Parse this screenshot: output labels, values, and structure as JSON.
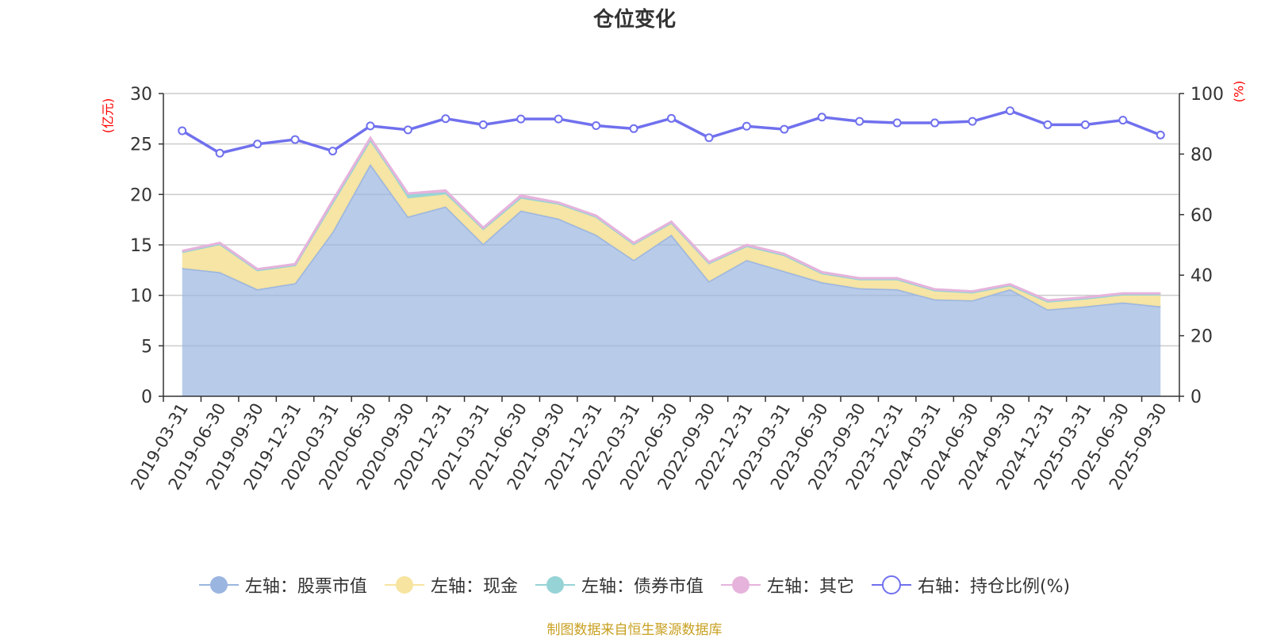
{
  "chart_data": {
    "type": "area",
    "title": "仓位变化",
    "left_axis_unit": "(亿元)",
    "right_axis_unit": "(%)",
    "left_ylim": [
      0,
      30
    ],
    "left_ticks": [
      0,
      5,
      10,
      15,
      20,
      25,
      30
    ],
    "right_ylim": [
      0,
      100
    ],
    "right_ticks": [
      0,
      20,
      40,
      60,
      80,
      100
    ],
    "categories": [
      "2019-03-31",
      "2019-06-30",
      "2019-09-30",
      "2019-12-31",
      "2020-03-31",
      "2020-06-30",
      "2020-09-30",
      "2020-12-31",
      "2021-03-31",
      "2021-06-30",
      "2021-09-30",
      "2021-12-31",
      "2022-03-31",
      "2022-06-30",
      "2022-09-30",
      "2022-12-31",
      "2023-03-31",
      "2023-06-30",
      "2023-09-30",
      "2023-12-31",
      "2024-03-31",
      "2024-06-30",
      "2024-09-30",
      "2024-12-31",
      "2025-03-31",
      "2025-06-30",
      "2025-09-30"
    ],
    "series": [
      {
        "name": "左轴：股票市值",
        "axis": "left",
        "kind": "stacked-area",
        "color": "#9ab5e0",
        "values": [
          12.7,
          12.3,
          10.6,
          11.2,
          16.3,
          23.0,
          17.8,
          18.8,
          15.1,
          18.4,
          17.6,
          16.0,
          13.5,
          16.0,
          11.4,
          13.5,
          12.4,
          11.3,
          10.7,
          10.6,
          9.6,
          9.5,
          10.6,
          8.6,
          8.9,
          9.3,
          8.9
        ]
      },
      {
        "name": "左轴：现金",
        "axis": "left",
        "kind": "stacked-area",
        "color": "#f7e4a0",
        "values": [
          1.6,
          2.8,
          1.9,
          1.8,
          2.9,
          2.4,
          1.8,
          1.2,
          1.5,
          1.3,
          1.5,
          1.8,
          1.6,
          1.2,
          1.8,
          1.4,
          1.6,
          0.9,
          0.9,
          1.0,
          0.9,
          0.8,
          0.4,
          0.8,
          0.8,
          0.8,
          1.2
        ]
      },
      {
        "name": "左轴：债券市值",
        "axis": "left",
        "kind": "stacked-area",
        "color": "#96d3d6",
        "values": [
          0,
          0,
          0,
          0,
          0,
          0,
          0.4,
          0.2,
          0,
          0,
          0,
          0,
          0,
          0,
          0,
          0,
          0,
          0,
          0,
          0,
          0,
          0,
          0,
          0,
          0,
          0,
          0
        ]
      },
      {
        "name": "左轴：其它",
        "axis": "left",
        "kind": "stacked-area",
        "color": "#e6b3dc",
        "values": [
          0.1,
          0.1,
          0.1,
          0.1,
          0.2,
          0.2,
          0.1,
          0.2,
          0.1,
          0.2,
          0.1,
          0.1,
          0.1,
          0.1,
          0.1,
          0.1,
          0.1,
          0.1,
          0.1,
          0.1,
          0.1,
          0.1,
          0.1,
          0.1,
          0.1,
          0.1,
          0.1
        ]
      },
      {
        "name": "右轴：持仓比例(%)",
        "axis": "right",
        "kind": "line",
        "color": "#7070ee",
        "values": [
          87.7,
          80.3,
          83.3,
          84.8,
          81.0,
          89.3,
          88.0,
          91.7,
          89.7,
          91.6,
          91.6,
          89.4,
          88.4,
          91.8,
          85.4,
          89.2,
          88.2,
          92.2,
          90.8,
          90.3,
          90.3,
          90.8,
          94.3,
          89.7,
          89.7,
          91.2,
          86.3
        ]
      }
    ],
    "source_text": "制图数据来自恒生聚源数据库"
  }
}
